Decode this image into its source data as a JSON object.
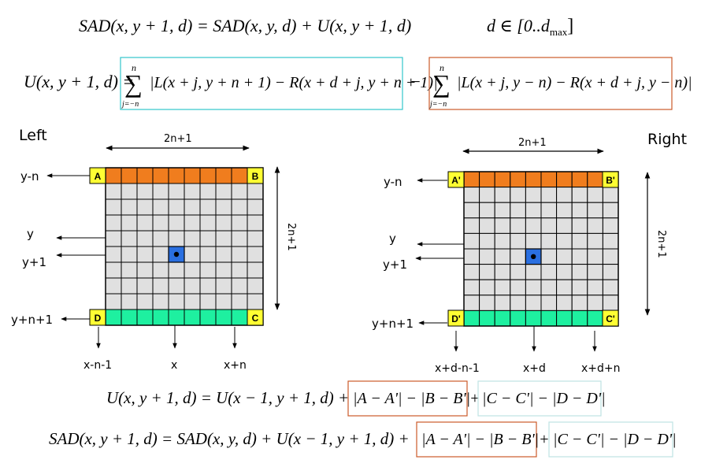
{
  "equations": {
    "top_sad": "SAD(x, y + 1, d) = SAD(x, y, d) + U(x, y + 1, d)",
    "d_range": "d ∈ [0..d",
    "d_range_sub": "max",
    "d_range_close": "]",
    "u_lhs": "U(x, y + 1, d) =",
    "sum_upper": "n",
    "sum_lower": "j=−n",
    "sum_sign": "∑",
    "u_term1": "|L(x + j, y + n + 1) − R(x + d + j, y + n + 1)|",
    "minus": "−",
    "u_term2": "|L(x + j, y − n) − R(x + d + j, y − n)|",
    "bottom_u_lhs": "U(x, y + 1, d) = U(x − 1, y + 1, d) +",
    "bottom_u_box1": "|A − A'| − |B − B'|",
    "plus": "+",
    "bottom_u_box2": "|C − C'| − |D − D'|",
    "bottom_sad_lhs": "SAD(x, y + 1, d) = SAD(x, y, d) + U(x − 1, y + 1, d) +",
    "bottom_sad_box1": "|A − A'| − |B − B'|",
    "bottom_sad_box2": "|C − C'| − |D − D'|"
  },
  "left_panel": {
    "title": "Left",
    "width_label": "2n+1",
    "height_label": "2n+1",
    "row_labels": [
      "y-n",
      "y",
      "y+1",
      "y+n+1"
    ],
    "col_labels": [
      "x-n-1",
      "x",
      "x+n"
    ],
    "corners": [
      "A",
      "B",
      "D",
      "C"
    ]
  },
  "right_panel": {
    "title": "Right",
    "width_label": "2n+1",
    "height_label": "2n+1",
    "row_labels": [
      "y-n",
      "y",
      "y+1",
      "y+n+1"
    ],
    "col_labels": [
      "x+d-n-1",
      "x+d",
      "x+d+n"
    ],
    "corners": [
      "A'",
      "B'",
      "D'",
      "C'"
    ]
  },
  "colors": {
    "top_row": "#f07d1e",
    "bottom_row": "#1ef0a0",
    "grid_fill": "#e0e0e0",
    "corner_fill": "#ffff33",
    "center_cell": "#2a6fe0",
    "cyan_box": "#33c6cc",
    "orange_box": "#cc5a2a"
  }
}
